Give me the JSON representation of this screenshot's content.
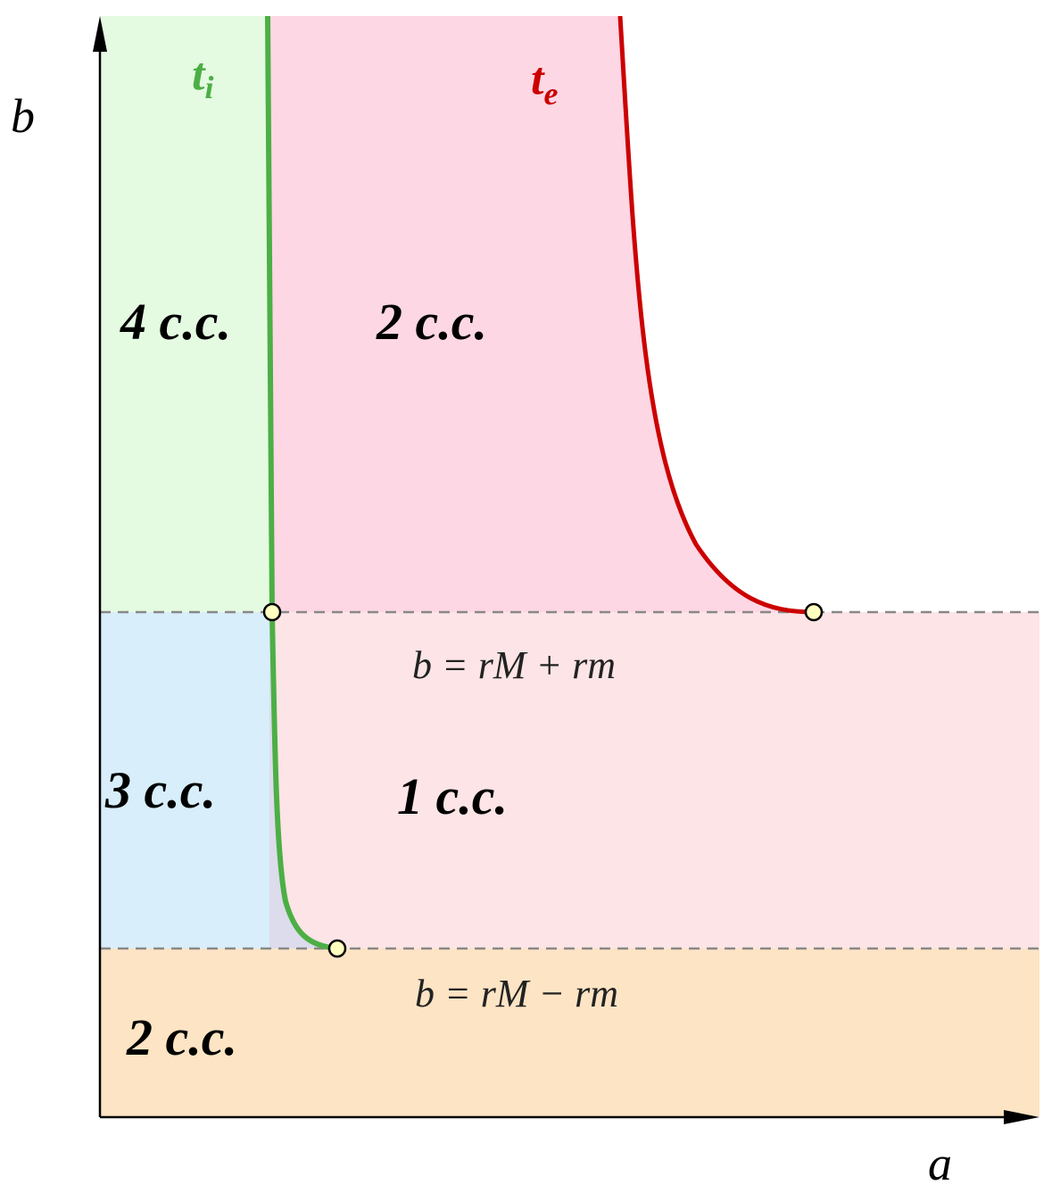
{
  "axes": {
    "x_label": "a",
    "y_label": "b"
  },
  "curves": [
    {
      "label": "t",
      "subscript": "i"
    },
    {
      "label": "t",
      "subscript": "e"
    }
  ],
  "regions": [
    "4 c.c.",
    "2 c.c.",
    "3 c.c.",
    "1 c.c.",
    "2 c.c."
  ],
  "lines": [
    "b = rM + rm",
    "b = rM − rm"
  ]
}
